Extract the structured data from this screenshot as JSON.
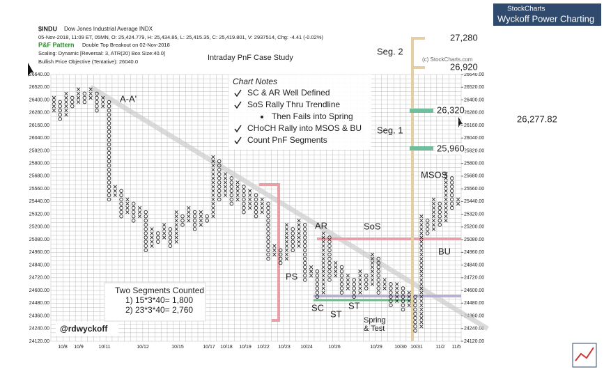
{
  "chart_data": {
    "type": "pnf",
    "symbol": "$INDU",
    "symbol_name": "Dow Jones Industrial Average INDX",
    "quote_line": "05-Nov-2018, 11:09 ET, 05MN, O: 25,424.779, H: 25,434.85, L: 25,415.35, C: 25,419.801, V: 2937514, Chg: -4.41 (-0.02%)",
    "pattern_label": "P&F Pattern",
    "pattern": "Double Top Breakout on 02-Nov-2018",
    "scaling": "Scaling: Dynamic [Reversal: 3, ATR(20) Box Size:40.0]",
    "objective": "Bullish Price Objective (Tentative): 26040.0",
    "title": "Intraday PnF Case Study",
    "copyright": "(c) StockCharts.com",
    "logo": "StockCharts",
    "banner": "Wyckoff Power Charting",
    "last_price": "26,277.82",
    "box_size": 40,
    "ylim": [
      24120,
      26640
    ],
    "yticks": [
      {
        "value": 24120,
        "label": "24120.00"
      },
      {
        "value": 24240,
        "label": "24240.00"
      },
      {
        "value": 24360,
        "label": "24360.00"
      },
      {
        "value": 24480,
        "label": "24480.00"
      },
      {
        "value": 24600,
        "label": "24600.00"
      },
      {
        "value": 24720,
        "label": "24720.00"
      },
      {
        "value": 24840,
        "label": "24840.00"
      },
      {
        "value": 24960,
        "label": "24960.00"
      },
      {
        "value": 25080,
        "label": "25080.00"
      },
      {
        "value": 25200,
        "label": "25200.00"
      },
      {
        "value": 25320,
        "label": "25320.00"
      },
      {
        "value": 25440,
        "label": "25440.00"
      },
      {
        "value": 25560,
        "label": "25560.00"
      },
      {
        "value": 25680,
        "label": "25680.00"
      },
      {
        "value": 25800,
        "label": "25800.00"
      },
      {
        "value": 25920,
        "label": "25920.00"
      },
      {
        "value": 26040,
        "label": "26040.00"
      },
      {
        "value": 26160,
        "label": "26160.00"
      },
      {
        "value": 26280,
        "label": "26280.00"
      },
      {
        "value": 26400,
        "label": "26400.00"
      },
      {
        "value": 26520,
        "label": "26520.00"
      },
      {
        "value": 26640,
        "label": "26640.00"
      }
    ],
    "dates": [
      "10/8",
      "10/9",
      "10/11",
      "10/12",
      "10/15",
      "10/17",
      "10/18",
      "10/19",
      "10/22",
      "10/23",
      "10/24",
      "10/26",
      "10/29",
      "10/30",
      "10/31",
      "11/2",
      "11/5"
    ],
    "columns": [
      [
        26280,
        26400
      ],
      [
        26200,
        26360
      ],
      [
        26240,
        26440
      ],
      [
        26320,
        26400
      ],
      [
        26360,
        26480
      ],
      [
        26360,
        26440
      ],
      [
        26400,
        26480
      ],
      [
        26280,
        26440
      ],
      [
        26320,
        26400
      ],
      [
        25440,
        26360
      ],
      [
        25480,
        25560
      ],
      [
        25280,
        25520
      ],
      [
        25320,
        25440
      ],
      [
        25240,
        25400
      ],
      [
        25280,
        25360
      ],
      [
        24960,
        25320
      ],
      [
        25000,
        25160
      ],
      [
        25040,
        25120
      ],
      [
        25080,
        25200
      ],
      [
        25000,
        25160
      ],
      [
        25040,
        25320
      ],
      [
        25200,
        25280
      ],
      [
        25240,
        25360
      ],
      [
        25160,
        25320
      ],
      [
        25200,
        25320
      ],
      [
        25240,
        25280
      ],
      [
        25280,
        25840
      ],
      [
        25440,
        25800
      ],
      [
        25480,
        25680
      ],
      [
        25400,
        25640
      ],
      [
        25440,
        25600
      ],
      [
        25320,
        25560
      ],
      [
        25360,
        25520
      ],
      [
        25280,
        25480
      ],
      [
        25320,
        25440
      ],
      [
        24880,
        25400
      ],
      [
        24920,
        25000
      ],
      [
        24840,
        24960
      ],
      [
        24880,
        25200
      ],
      [
        24960,
        25160
      ],
      [
        25000,
        25240
      ],
      [
        24680,
        25200
      ],
      [
        24720,
        24800
      ],
      [
        24520,
        24760
      ],
      [
        24560,
        25120
      ],
      [
        24680,
        25080
      ],
      [
        24720,
        24840
      ],
      [
        24560,
        24800
      ],
      [
        24600,
        24720
      ],
      [
        24520,
        24680
      ],
      [
        24560,
        24760
      ],
      [
        24600,
        24720
      ],
      [
        24640,
        24920
      ],
      [
        24560,
        24880
      ],
      [
        24600,
        24680
      ],
      [
        24440,
        24640
      ],
      [
        24480,
        24640
      ],
      [
        24400,
        24600
      ],
      [
        24440,
        24560
      ],
      [
        24200,
        24520
      ],
      [
        24240,
        25280
      ],
      [
        25120,
        25240
      ],
      [
        25160,
        25440
      ],
      [
        25200,
        25400
      ],
      [
        25240,
        25680
      ],
      [
        25360,
        25640
      ],
      [
        25400,
        25440
      ]
    ],
    "notes_title": "Chart Notes",
    "notes": [
      "SC & AR Well Defined",
      "SoS Rally Thru Trendline",
      "Then Fails into Spring",
      "CHoCH Rally into MSOS & BU",
      "Count PnF Segments"
    ],
    "count_box": [
      "Two Segments Counted",
      "1) 15*3*40= 1,800",
      "2) 23*3*40= 2,760"
    ],
    "handle": "@rdwyckoff",
    "annotations": [
      "A-A'",
      "AR",
      "SoS",
      "PS",
      "SC",
      "ST",
      "ST",
      "Spring",
      "& Test",
      "MSOS",
      "BU",
      "Seg. 1",
      "Seg. 2",
      "27,280",
      "26,920",
      "26,320",
      "25,960"
    ]
  }
}
